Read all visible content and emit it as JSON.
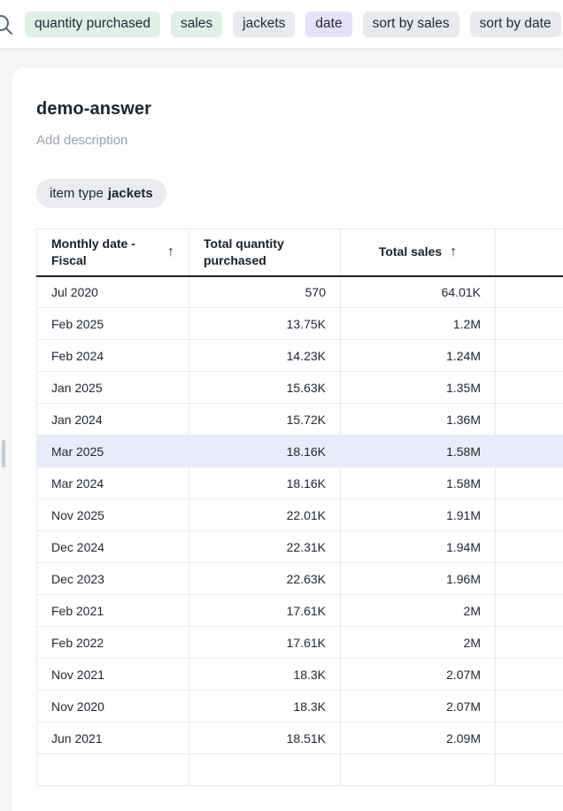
{
  "colors": {
    "token_green": "#ddf1e7",
    "token_gray": "#e9eaee",
    "token_purple": "#e5e1f8",
    "row_highlight": "#e7ecf8",
    "page_bg": "#f4f5f7",
    "grid_border": "#e8eaef",
    "header_border": "#1c212b"
  },
  "search_bar": {
    "icon": "search-icon",
    "tokens": [
      {
        "label": "quantity purchased",
        "style": "green"
      },
      {
        "label": "sales",
        "style": "green"
      },
      {
        "label": "jackets",
        "style": "gray"
      },
      {
        "label": "date",
        "style": "purple"
      },
      {
        "label": "sort by sales",
        "style": "gray"
      },
      {
        "label": "sort by date",
        "style": "gray"
      }
    ]
  },
  "answer": {
    "title": "demo-answer",
    "description_placeholder": "Add description",
    "filter_chip": {
      "prefix": "item type",
      "value": "jackets"
    }
  },
  "table": {
    "sort_arrow": "↑",
    "columns": [
      {
        "label": "Monthly date - Fiscal",
        "sorted": true,
        "align": "left"
      },
      {
        "label": "Total quantity purchased",
        "sorted": false,
        "align": "left"
      },
      {
        "label": "Total sales",
        "sorted": true,
        "align": "center"
      },
      {
        "label": "",
        "sorted": false,
        "align": "left"
      }
    ],
    "highlighted_row_index": 5,
    "rows": [
      {
        "date": "Jul 2020",
        "quantity": "570",
        "sales": "64.01K"
      },
      {
        "date": "Feb 2025",
        "quantity": "13.75K",
        "sales": "1.2M"
      },
      {
        "date": "Feb 2024",
        "quantity": "14.23K",
        "sales": "1.24M"
      },
      {
        "date": "Jan 2025",
        "quantity": "15.63K",
        "sales": "1.35M"
      },
      {
        "date": "Jan 2024",
        "quantity": "15.72K",
        "sales": "1.36M"
      },
      {
        "date": "Mar 2025",
        "quantity": "18.16K",
        "sales": "1.58M"
      },
      {
        "date": "Mar 2024",
        "quantity": "18.16K",
        "sales": "1.58M"
      },
      {
        "date": "Nov 2025",
        "quantity": "22.01K",
        "sales": "1.91M"
      },
      {
        "date": "Dec 2024",
        "quantity": "22.31K",
        "sales": "1.94M"
      },
      {
        "date": "Dec 2023",
        "quantity": "22.63K",
        "sales": "1.96M"
      },
      {
        "date": "Feb 2021",
        "quantity": "17.61K",
        "sales": "2M"
      },
      {
        "date": "Feb 2022",
        "quantity": "17.61K",
        "sales": "2M"
      },
      {
        "date": "Nov 2021",
        "quantity": "18.3K",
        "sales": "2.07M"
      },
      {
        "date": "Nov 2020",
        "quantity": "18.3K",
        "sales": "2.07M"
      },
      {
        "date": "Jun 2021",
        "quantity": "18.51K",
        "sales": "2.09M"
      }
    ]
  }
}
